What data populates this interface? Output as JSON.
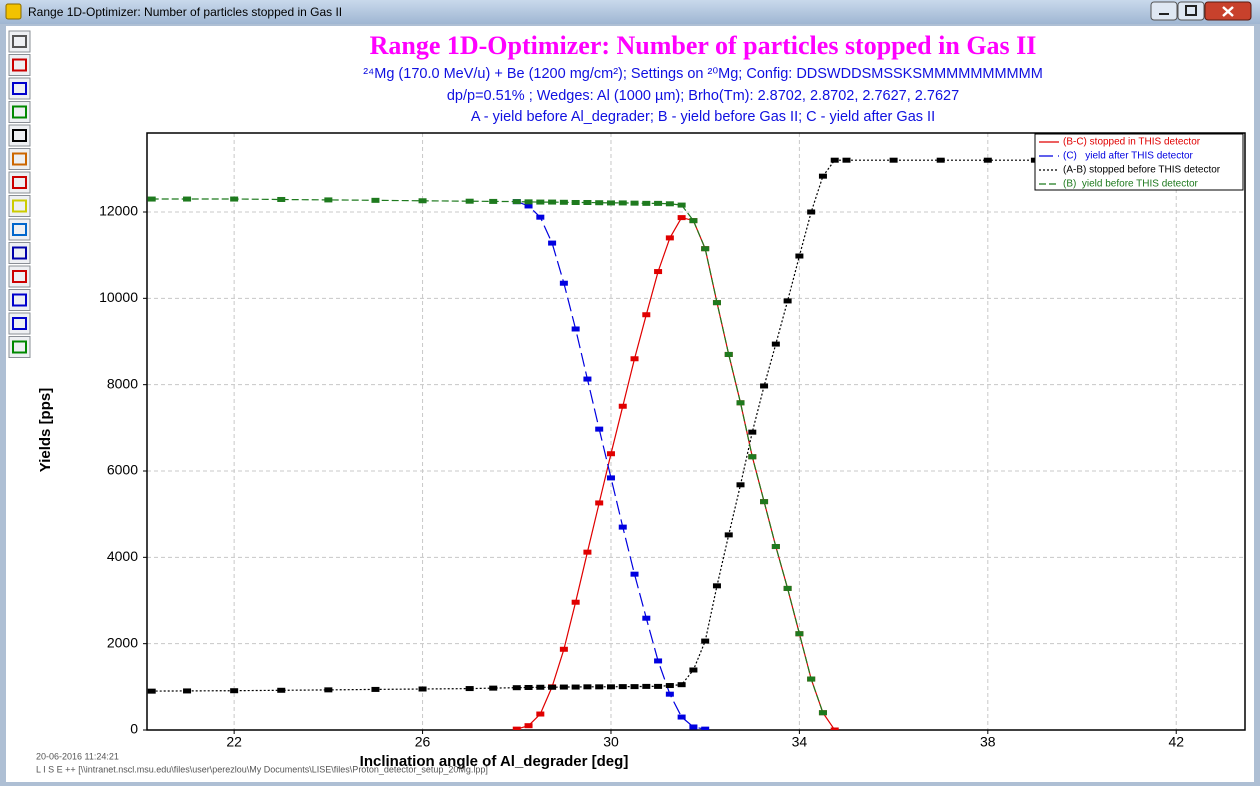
{
  "window": {
    "title": "Range 1D-Optimizer: Number of particles stopped in Gas II"
  },
  "chart_data": {
    "type": "line",
    "title": "Range 1D-Optimizer: Number of particles stopped in Gas II",
    "subtitle": [
      "²⁴Mg (170.0 MeV/u) + Be (1200 mg/cm²);  Settings on ²⁰Mg;  Config: DDSWDDSMSSKSMMMMMMMMMM",
      "dp/p=0.51% ; Wedges: Al (1000 µm); Brho(Tm): 2.8702, 2.8702, 2.7627, 2.7627",
      "A - yield before Al_degrader;   B - yield before Gas II;   C - yield after Gas II"
    ],
    "x_label": "Inclination angle of Al_degrader [deg]",
    "y_label": "Yields [pps]",
    "x": [
      20.25,
      21,
      22,
      23,
      24,
      25,
      26,
      27,
      27.5,
      28,
      28.25,
      28.5,
      28.75,
      29,
      29.25,
      29.5,
      29.75,
      30,
      30.25,
      30.5,
      30.75,
      31,
      31.25,
      31.5,
      31.75,
      32,
      32.25,
      32.5,
      32.75,
      33,
      33.25,
      33.5,
      33.75,
      34,
      34.25,
      34.5,
      34.75,
      35,
      36,
      37,
      38,
      39,
      40,
      41,
      42
    ],
    "series": [
      {
        "name": "(B-C) stopped in THIS detector",
        "color": "#e00000",
        "dash": "solid",
        "values": [
          null,
          null,
          null,
          null,
          null,
          null,
          null,
          null,
          null,
          20,
          100,
          370,
          1000,
          1870,
          2960,
          4120,
          5260,
          6400,
          7500,
          8600,
          9620,
          10620,
          11400,
          11870,
          11800,
          11150,
          9900,
          8700,
          7580,
          6330,
          5290,
          4250,
          3280,
          2230,
          1180,
          400,
          0,
          null,
          null,
          null,
          null,
          null,
          null,
          null,
          null
        ]
      },
      {
        "name": "(C)   yield after THIS detector",
        "color": "#0000e0",
        "dash": "long-dash",
        "values": [
          null,
          null,
          null,
          null,
          null,
          null,
          null,
          null,
          null,
          12240,
          12140,
          11880,
          11280,
          10350,
          9290,
          8130,
          6970,
          5840,
          4700,
          3610,
          2590,
          1600,
          830,
          300,
          70,
          20,
          null,
          null,
          null,
          null,
          null,
          null,
          null,
          null,
          null,
          null,
          null,
          null,
          null,
          null,
          null,
          null,
          null,
          null,
          null
        ]
      },
      {
        "name": "(A-B) stopped before THIS detector",
        "color": "#000000",
        "dash": "dot",
        "values": [
          900,
          905,
          910,
          920,
          930,
          940,
          950,
          960,
          970,
          980,
          985,
          990,
          990,
          995,
          995,
          1000,
          1000,
          1000,
          1005,
          1005,
          1010,
          1010,
          1030,
          1050,
          1390,
          2060,
          3340,
          4520,
          5680,
          6900,
          7970,
          8940,
          9940,
          10980,
          12000,
          12830,
          13200,
          13200,
          13200,
          13200,
          13200,
          13200,
          13200,
          13200,
          13200
        ]
      },
      {
        "name": "(B)  yield before THIS detector",
        "color": "#1e7a1e",
        "dash": "dash",
        "values": [
          12300,
          12300,
          12300,
          12290,
          12280,
          12270,
          12260,
          12250,
          12245,
          12240,
          12235,
          12230,
          12230,
          12225,
          12220,
          12220,
          12215,
          12210,
          12210,
          12205,
          12200,
          12200,
          12190,
          12160,
          11800,
          11150,
          9900,
          8700,
          7580,
          6330,
          5290,
          4250,
          3280,
          2230,
          1180,
          400,
          null,
          null,
          null,
          null,
          null,
          null,
          null,
          null,
          null
        ]
      }
    ],
    "xlim": [
      20.15,
      43.46
    ],
    "xticks": [
      22,
      26,
      30,
      34,
      38,
      42
    ],
    "ylim": [
      0,
      13830
    ],
    "yticks": [
      0,
      2000,
      4000,
      6000,
      8000,
      10000,
      12000
    ],
    "grid": true,
    "legend": "top-right"
  },
  "footer": {
    "timestamp": "20-06-2016   11:24:21",
    "path": "L I S E ++   [\\\\intranet.nscl.msu.edu\\files\\user\\perezlou\\My Documents\\LISE\\files\\Proton_detector_setup_20Mg.lpp]"
  }
}
